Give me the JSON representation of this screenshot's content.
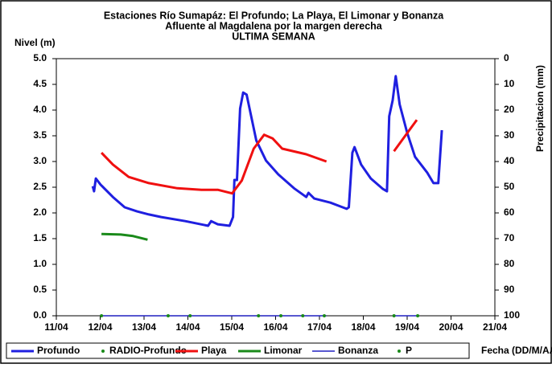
{
  "chart_data": {
    "type": "line",
    "title": [
      "Estaciones Río Sumapáz: El Profundo; La Playa, El Limonar y Bonanza",
      "Afluente al Magdalena por la margen derecha",
      "ULTIMA SEMANA"
    ],
    "ylabel": "Nivel (m)",
    "y2label": "Precipitacion (mm)",
    "xlabel": "Fecha (DD/M/AA)",
    "xlim": [
      11,
      21
    ],
    "xticks": [
      {
        "value": 11,
        "label": "11/04"
      },
      {
        "value": 12,
        "label": "12/04"
      },
      {
        "value": 13,
        "label": "13/04"
      },
      {
        "value": 14,
        "label": "14/04"
      },
      {
        "value": 15,
        "label": "15/04"
      },
      {
        "value": 16,
        "label": "16/04"
      },
      {
        "value": 17,
        "label": "17/04"
      },
      {
        "value": 18,
        "label": "18/04"
      },
      {
        "value": 19,
        "label": "19/04"
      },
      {
        "value": 20,
        "label": "20/04"
      },
      {
        "value": 21,
        "label": "21/04"
      }
    ],
    "ylim": [
      0,
      5
    ],
    "yticks": [
      {
        "value": 0,
        "label": "0.0"
      },
      {
        "value": 0.5,
        "label": "0.5"
      },
      {
        "value": 1,
        "label": "1.0"
      },
      {
        "value": 1.5,
        "label": "1.5"
      },
      {
        "value": 2,
        "label": "2.0"
      },
      {
        "value": 2.5,
        "label": "2.5"
      },
      {
        "value": 3,
        "label": "3.0"
      },
      {
        "value": 3.5,
        "label": "3.5"
      },
      {
        "value": 4,
        "label": "4.0"
      },
      {
        "value": 4.5,
        "label": "4.5"
      },
      {
        "value": 5,
        "label": "5.0"
      }
    ],
    "y2lim": [
      100,
      0
    ],
    "y2ticks": [
      0,
      10,
      20,
      30,
      40,
      50,
      60,
      70,
      80,
      90,
      100
    ],
    "series": [
      {
        "name": "Profundo",
        "color": "#1f1fe0",
        "style": "line",
        "width": 3,
        "x": [
          11.83,
          11.86,
          11.9,
          12.01,
          12.29,
          12.56,
          12.84,
          13.11,
          13.39,
          13.94,
          14.46,
          14.53,
          14.68,
          14.95,
          15.03,
          15.06,
          15.12,
          15.19,
          15.26,
          15.34,
          15.56,
          15.78,
          16.06,
          16.42,
          16.7,
          16.75,
          16.88,
          17.25,
          17.62,
          17.67,
          17.75,
          17.8,
          17.95,
          18.17,
          18.44,
          18.54,
          18.59,
          18.67,
          18.74,
          18.83,
          19.0,
          19.18,
          19.46,
          19.6,
          19.71,
          19.79
        ],
        "values": [
          2.52,
          2.42,
          2.67,
          2.55,
          2.31,
          2.11,
          2.03,
          1.97,
          1.92,
          1.84,
          1.75,
          1.84,
          1.78,
          1.75,
          1.92,
          2.64,
          2.64,
          4.03,
          4.34,
          4.3,
          3.41,
          3.02,
          2.75,
          2.48,
          2.31,
          2.39,
          2.28,
          2.2,
          2.08,
          2.11,
          3.17,
          3.28,
          2.94,
          2.67,
          2.47,
          2.42,
          3.88,
          4.19,
          4.66,
          4.11,
          3.56,
          3.09,
          2.78,
          2.58,
          2.58,
          3.61
        ]
      },
      {
        "name": "RADIO-Profundo",
        "color": "#1a8a1a",
        "style": "dot",
        "x": [],
        "values": []
      },
      {
        "name": "Playa",
        "color": "#f01010",
        "style": "line",
        "width": 3,
        "x": [
          12.03,
          12.29,
          12.65,
          13.11,
          13.76,
          14.31,
          14.68,
          15.01,
          15.23,
          15.5,
          15.74,
          15.93,
          16.15,
          16.7,
          17.16,
          17.9,
          18.7,
          19.22
        ],
        "values": [
          3.17,
          2.94,
          2.7,
          2.58,
          2.48,
          2.45,
          2.45,
          2.38,
          2.63,
          3.25,
          3.52,
          3.45,
          3.25,
          3.14,
          3.0,
          null,
          3.2,
          3.81
        ]
      },
      {
        "name": "Limonar",
        "color": "#1a8a1a",
        "style": "line",
        "width": 3,
        "x": [
          12.03,
          12.47,
          12.75,
          13.08
        ],
        "values": [
          1.59,
          1.58,
          1.55,
          1.48
        ]
      },
      {
        "name": "Bonanza",
        "color": "#2020c0",
        "style": "line",
        "width": 1.5,
        "x": [
          12.03,
          17.16,
          17.9,
          18.7,
          19.22
        ],
        "values": [
          0,
          0,
          null,
          0,
          0
        ]
      },
      {
        "name": "P",
        "color": "#1a8a1a",
        "style": "dot",
        "x": [
          12.03,
          13.55,
          14.05,
          15.61,
          16.12,
          16.62,
          17.11,
          18.7,
          19.24
        ],
        "values": [
          0,
          0,
          0,
          0,
          0,
          0,
          0,
          0,
          0
        ]
      }
    ]
  }
}
